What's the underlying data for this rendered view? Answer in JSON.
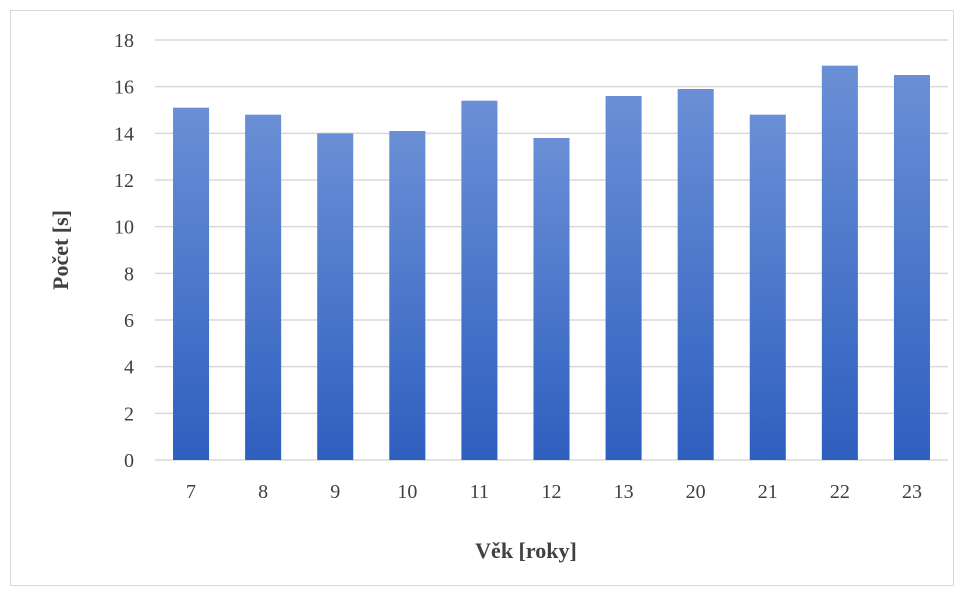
{
  "chart_data": {
    "type": "bar",
    "categories": [
      "7",
      "8",
      "9",
      "10",
      "11",
      "12",
      "13",
      "20",
      "21",
      "22",
      "23"
    ],
    "values": [
      15.1,
      14.8,
      14.0,
      14.1,
      15.4,
      13.8,
      15.6,
      15.9,
      14.8,
      16.9,
      16.5
    ],
    "title": "",
    "xlabel": "Věk [roky]",
    "ylabel": "Počet [s]",
    "ylim": [
      0,
      18
    ],
    "yticks": [
      "0",
      "2",
      "4",
      "6",
      "8",
      "10",
      "12",
      "14",
      "16",
      "18"
    ],
    "grid": true,
    "legend": "none",
    "colors": {
      "bar_top": "#6a8fd6",
      "bar_bottom": "#2e5fbf",
      "grid": "#d9d9d9",
      "text": "#404040"
    }
  }
}
